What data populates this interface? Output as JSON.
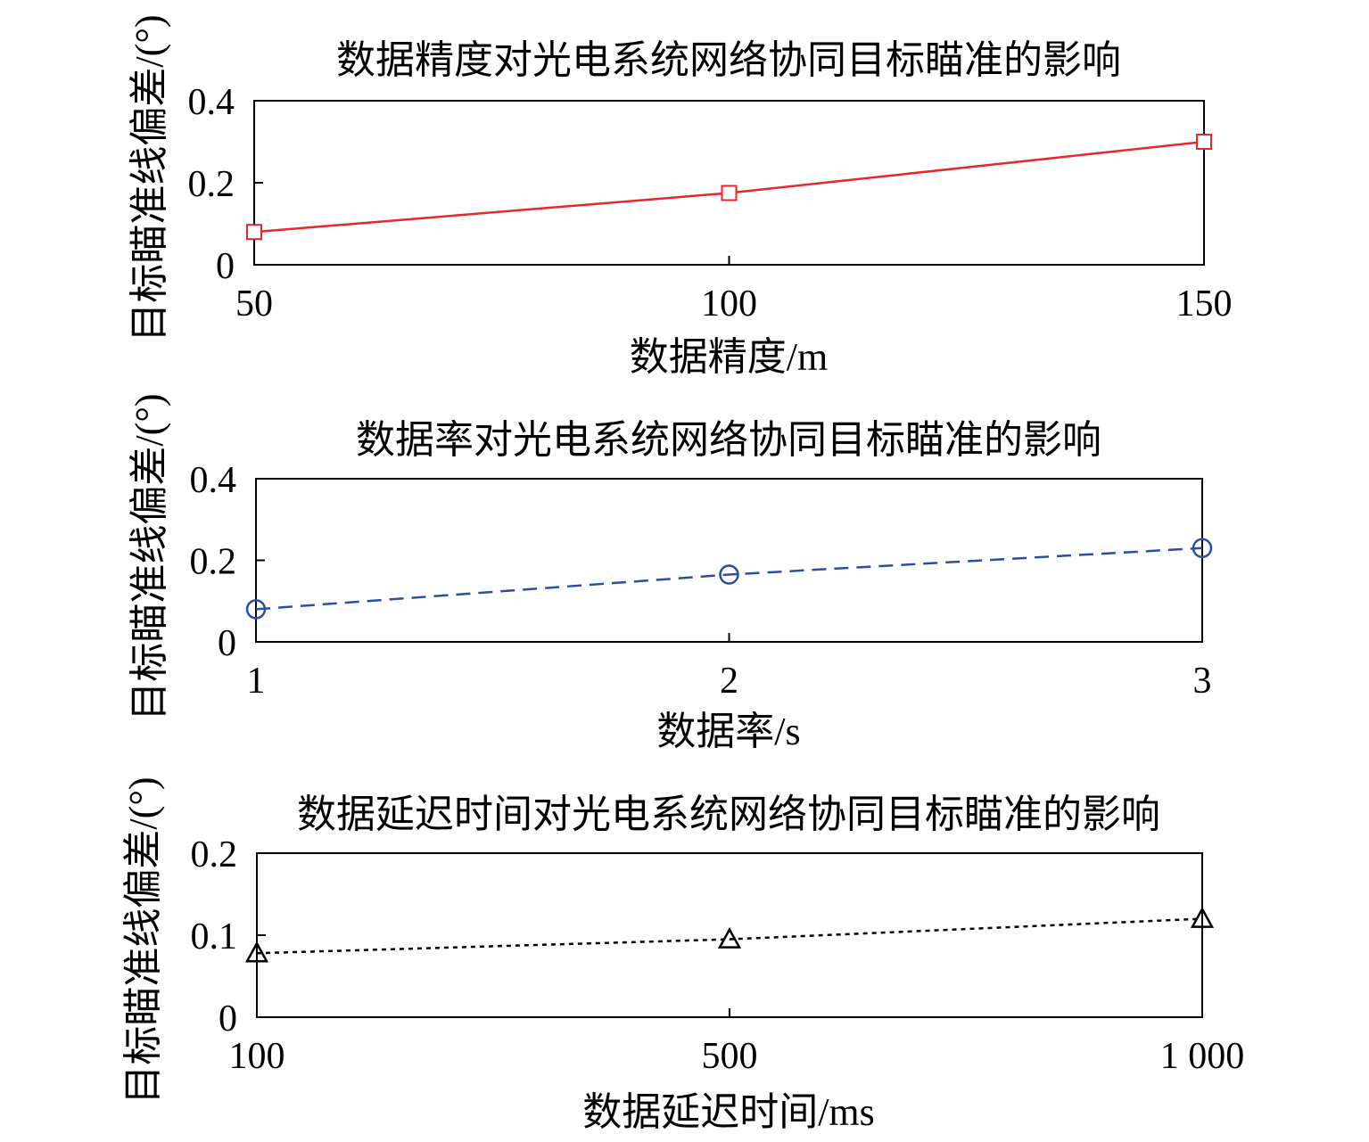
{
  "chart_data": [
    {
      "type": "line",
      "title": "数据精度对光电系统网络协同目标瞄准的影响",
      "xlabel": "数据精度/m",
      "ylabel": "目标瞄准线偏差/(°)",
      "categories": [
        "50",
        "100",
        "150"
      ],
      "x": [
        50,
        100,
        150
      ],
      "ylim": [
        0,
        0.4
      ],
      "yticks": [
        "0",
        "0.2",
        "0.4"
      ],
      "grid": false,
      "series": [
        {
          "values": [
            0.08,
            0.175,
            0.3
          ],
          "color": "#e8262b",
          "line_style": "solid",
          "marker": "square"
        }
      ]
    },
    {
      "type": "line",
      "title": "数据率对光电系统网络协同目标瞄准的影响",
      "xlabel": "数据率/s",
      "ylabel": "目标瞄准线偏差/(°)",
      "categories": [
        "1",
        "2",
        "3"
      ],
      "x": [
        1,
        2,
        3
      ],
      "ylim": [
        0,
        0.4
      ],
      "yticks": [
        "0",
        "0.2",
        "0.4"
      ],
      "grid": false,
      "series": [
        {
          "values": [
            0.08,
            0.165,
            0.23
          ],
          "color": "#2b4ea2",
          "line_style": "dashed",
          "marker": "circle"
        }
      ]
    },
    {
      "type": "line",
      "title": "数据延迟时间对光电系统网络协同目标瞄准的影响",
      "xlabel": "数据延迟时间/ms",
      "ylabel": "目标瞄准线偏差/(°)",
      "categories": [
        "100",
        "500",
        "1 000"
      ],
      "x": [
        100,
        500,
        1000
      ],
      "ylim": [
        0,
        0.2
      ],
      "yticks": [
        "0",
        "0.1",
        "0.2"
      ],
      "grid": false,
      "series": [
        {
          "values": [
            0.078,
            0.095,
            0.12
          ],
          "color": "#000000",
          "line_style": "dotted",
          "marker": "triangle"
        }
      ]
    }
  ]
}
